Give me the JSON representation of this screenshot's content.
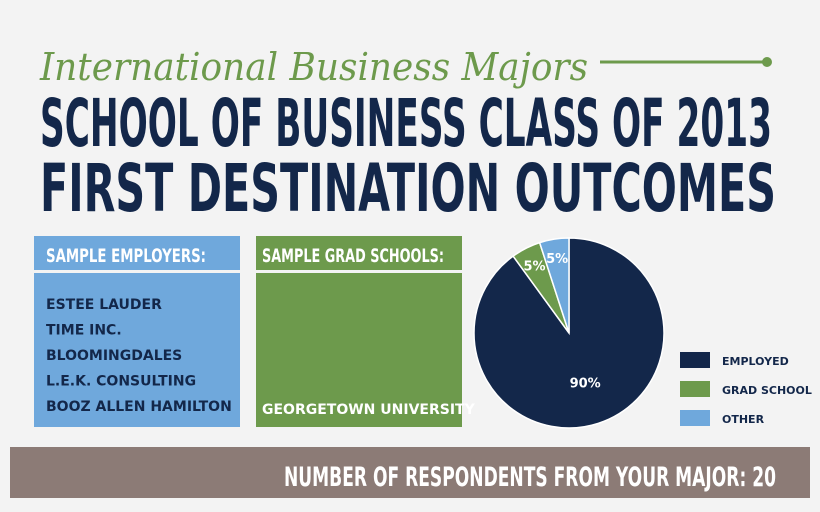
{
  "header": {
    "subtitle": "International Business Majors",
    "title_lines": [
      "SCHOOL OF BUSINESS CLASS OF 2013",
      "FIRST DESTINATION OUTCOMES"
    ]
  },
  "employers": {
    "heading": "SAMPLE EMPLOYERS:",
    "items": [
      "ESTEE LAUDER",
      "TIME INC.",
      "BLOOMINGDALES",
      "L.E.K. CONSULTING",
      "BOOZ ALLEN HAMILTON"
    ]
  },
  "grad_schools": {
    "heading": "SAMPLE GRAD SCHOOLS:",
    "items": [
      "GEORGETOWN UNIVERSITY"
    ]
  },
  "chart_data": {
    "type": "pie",
    "categories": [
      "EMPLOYED",
      "GRAD SCHOOL",
      "OTHER"
    ],
    "values": [
      90,
      5,
      5
    ],
    "value_labels": [
      "90%",
      "5%",
      "5%"
    ],
    "colors": [
      "#13274a",
      "#6d9a4c",
      "#6fa8dc"
    ]
  },
  "footer": {
    "text": "NUMBER OF RESPONDENTS FROM YOUR MAJOR: 20"
  }
}
